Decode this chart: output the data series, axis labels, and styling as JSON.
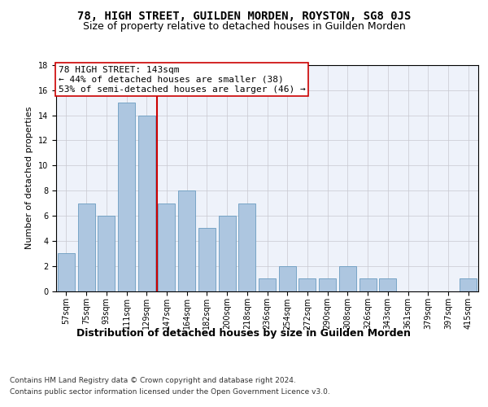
{
  "title": "78, HIGH STREET, GUILDEN MORDEN, ROYSTON, SG8 0JS",
  "subtitle": "Size of property relative to detached houses in Guilden Morden",
  "xlabel": "Distribution of detached houses by size in Guilden Morden",
  "ylabel": "Number of detached properties",
  "categories": [
    "57sqm",
    "75sqm",
    "93sqm",
    "111sqm",
    "129sqm",
    "147sqm",
    "164sqm",
    "182sqm",
    "200sqm",
    "218sqm",
    "236sqm",
    "254sqm",
    "272sqm",
    "290sqm",
    "308sqm",
    "326sqm",
    "343sqm",
    "361sqm",
    "379sqm",
    "397sqm",
    "415sqm"
  ],
  "values": [
    3,
    7,
    6,
    15,
    14,
    7,
    8,
    5,
    6,
    7,
    1,
    2,
    1,
    1,
    2,
    1,
    1,
    0,
    0,
    0,
    1
  ],
  "bar_color": "#adc6e0",
  "bar_edge_color": "#6a9cc0",
  "vline_color": "#cc0000",
  "vline_x": 4.5,
  "annotation_box_text": "78 HIGH STREET: 143sqm\n← 44% of detached houses are smaller (38)\n53% of semi-detached houses are larger (46) →",
  "ylim": [
    0,
    18
  ],
  "yticks": [
    0,
    2,
    4,
    6,
    8,
    10,
    12,
    14,
    16,
    18
  ],
  "grid_color": "#c8c8d0",
  "background_color": "#eef2fa",
  "footer_line1": "Contains HM Land Registry data © Crown copyright and database right 2024.",
  "footer_line2": "Contains public sector information licensed under the Open Government Licence v3.0.",
  "title_fontsize": 10,
  "subtitle_fontsize": 9,
  "xlabel_fontsize": 9,
  "ylabel_fontsize": 8,
  "tick_fontsize": 7,
  "annotation_fontsize": 8,
  "footer_fontsize": 6.5
}
